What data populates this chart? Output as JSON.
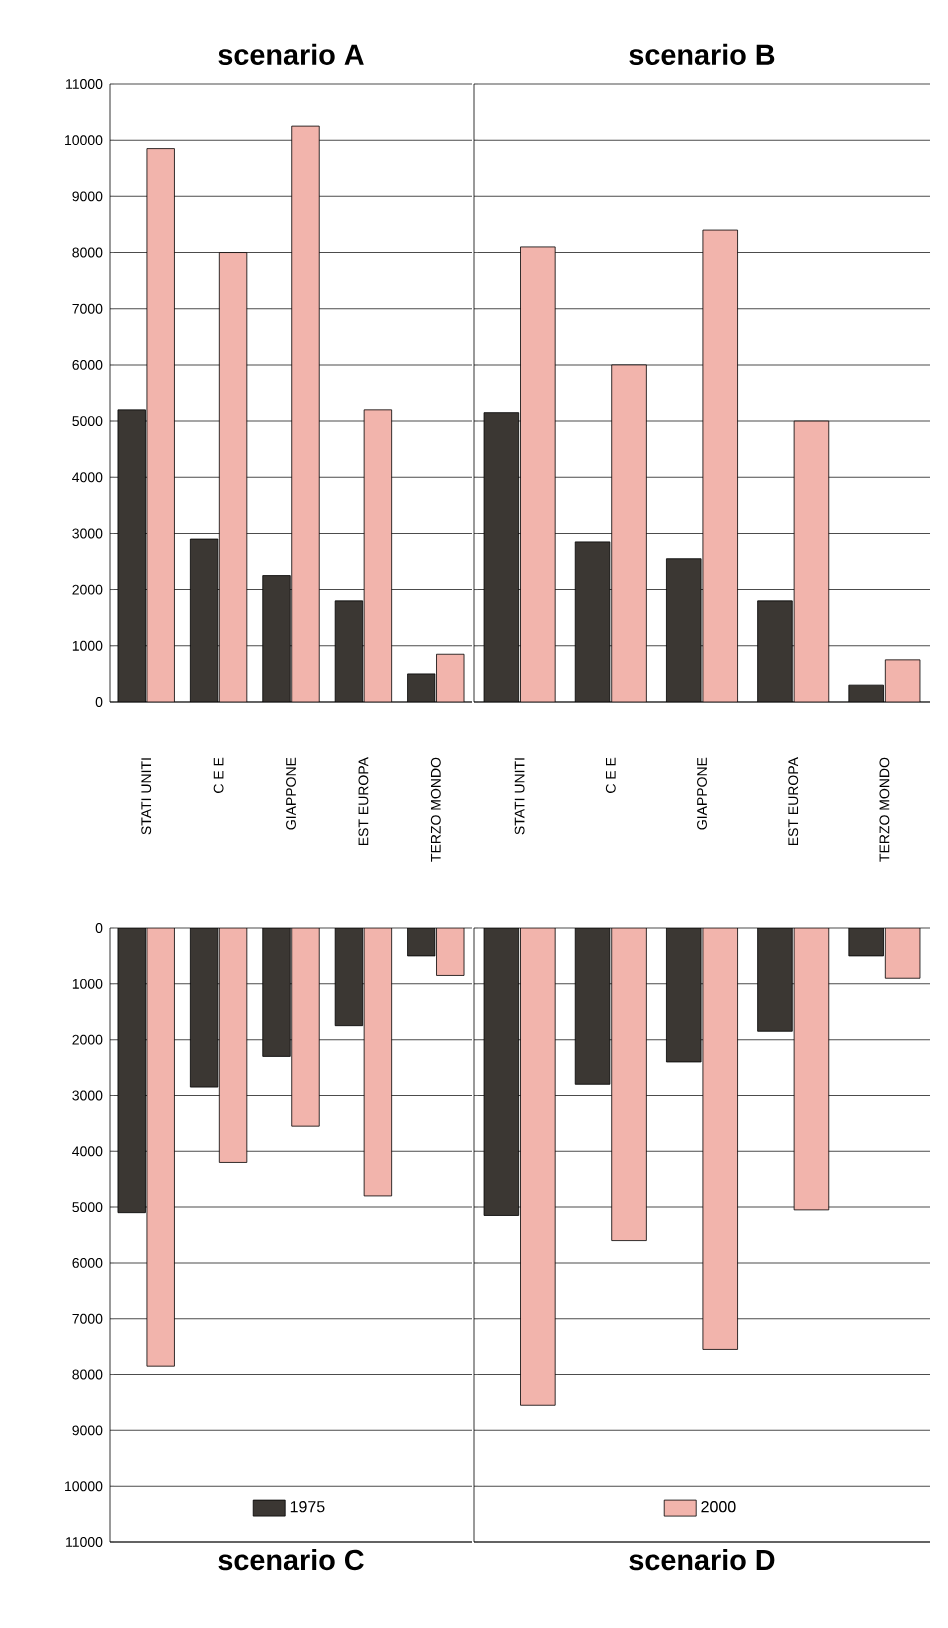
{
  "chart_data": [
    {
      "type": "bar",
      "title": "scenario A",
      "categories": [
        "STATI UNITI",
        "C E E",
        "GIAPPONE",
        "EST EUROPA",
        "TERZO MONDO"
      ],
      "series": [
        {
          "color": "#3b3733",
          "values": [
            5200,
            2900,
            2250,
            1800,
            500
          ]
        },
        {
          "color": "#f2b4ac",
          "values": [
            9850,
            8000,
            10250,
            5200,
            850
          ]
        }
      ],
      "ylim": [
        0,
        11000
      ],
      "yticks": [
        0,
        1000,
        2000,
        3000,
        4000,
        5000,
        6000,
        7000,
        8000,
        9000,
        10000,
        11000
      ],
      "grid": "y"
    },
    {
      "type": "bar",
      "title": "scenario B",
      "categories": [
        "STATI UNITI",
        "C E E",
        "GIAPPONE",
        "EST EUROPA",
        "TERZO MONDO"
      ],
      "series": [
        {
          "color": "#3b3733",
          "values": [
            5150,
            2850,
            2550,
            1800,
            300
          ]
        },
        {
          "color": "#f2b4ac",
          "values": [
            8100,
            6000,
            8400,
            5000,
            750
          ]
        }
      ],
      "ylim": [
        0,
        11000
      ],
      "yticks": [
        0,
        1000,
        2000,
        3000,
        4000,
        5000,
        6000,
        7000,
        8000,
        9000,
        10000,
        11000
      ],
      "grid": "y",
      "tick_labels": "x"
    },
    {
      "type": "bar",
      "title": "scenario C",
      "categories": [
        null,
        null,
        null,
        null,
        null
      ],
      "series": [
        {
          "name": "1975",
          "color": "#3b3733",
          "values": [
            5100,
            2850,
            2300,
            1750,
            500
          ]
        },
        {
          "color": "#f2b4ac",
          "values": [
            7850,
            4200,
            3550,
            4800,
            850
          ]
        }
      ],
      "ylim": [
        11000,
        0
      ],
      "yticks": [
        0,
        1000,
        2000,
        3000,
        4000,
        5000,
        6000,
        7000,
        8000,
        9000,
        10000,
        11000
      ],
      "grid": "y",
      "tick_labels": "y",
      "legend": "bottom"
    },
    {
      "type": "bar",
      "title": "scenario D",
      "categories": [
        null,
        null,
        null,
        null,
        null
      ],
      "series": [
        {
          "color": "#3b3733",
          "values": [
            5150,
            2800,
            2400,
            1850,
            500
          ]
        },
        {
          "name": "2000",
          "color": "#f2b4ac",
          "values": [
            8550,
            5600,
            7550,
            5050,
            900
          ]
        }
      ],
      "ylim": [
        11000,
        0
      ],
      "yticks": [
        0,
        1000,
        2000,
        3000,
        4000,
        5000,
        6000,
        7000,
        8000,
        9000,
        10000,
        11000
      ],
      "grid": "y",
      "tick_labels": false,
      "legend": "bottom"
    }
  ]
}
